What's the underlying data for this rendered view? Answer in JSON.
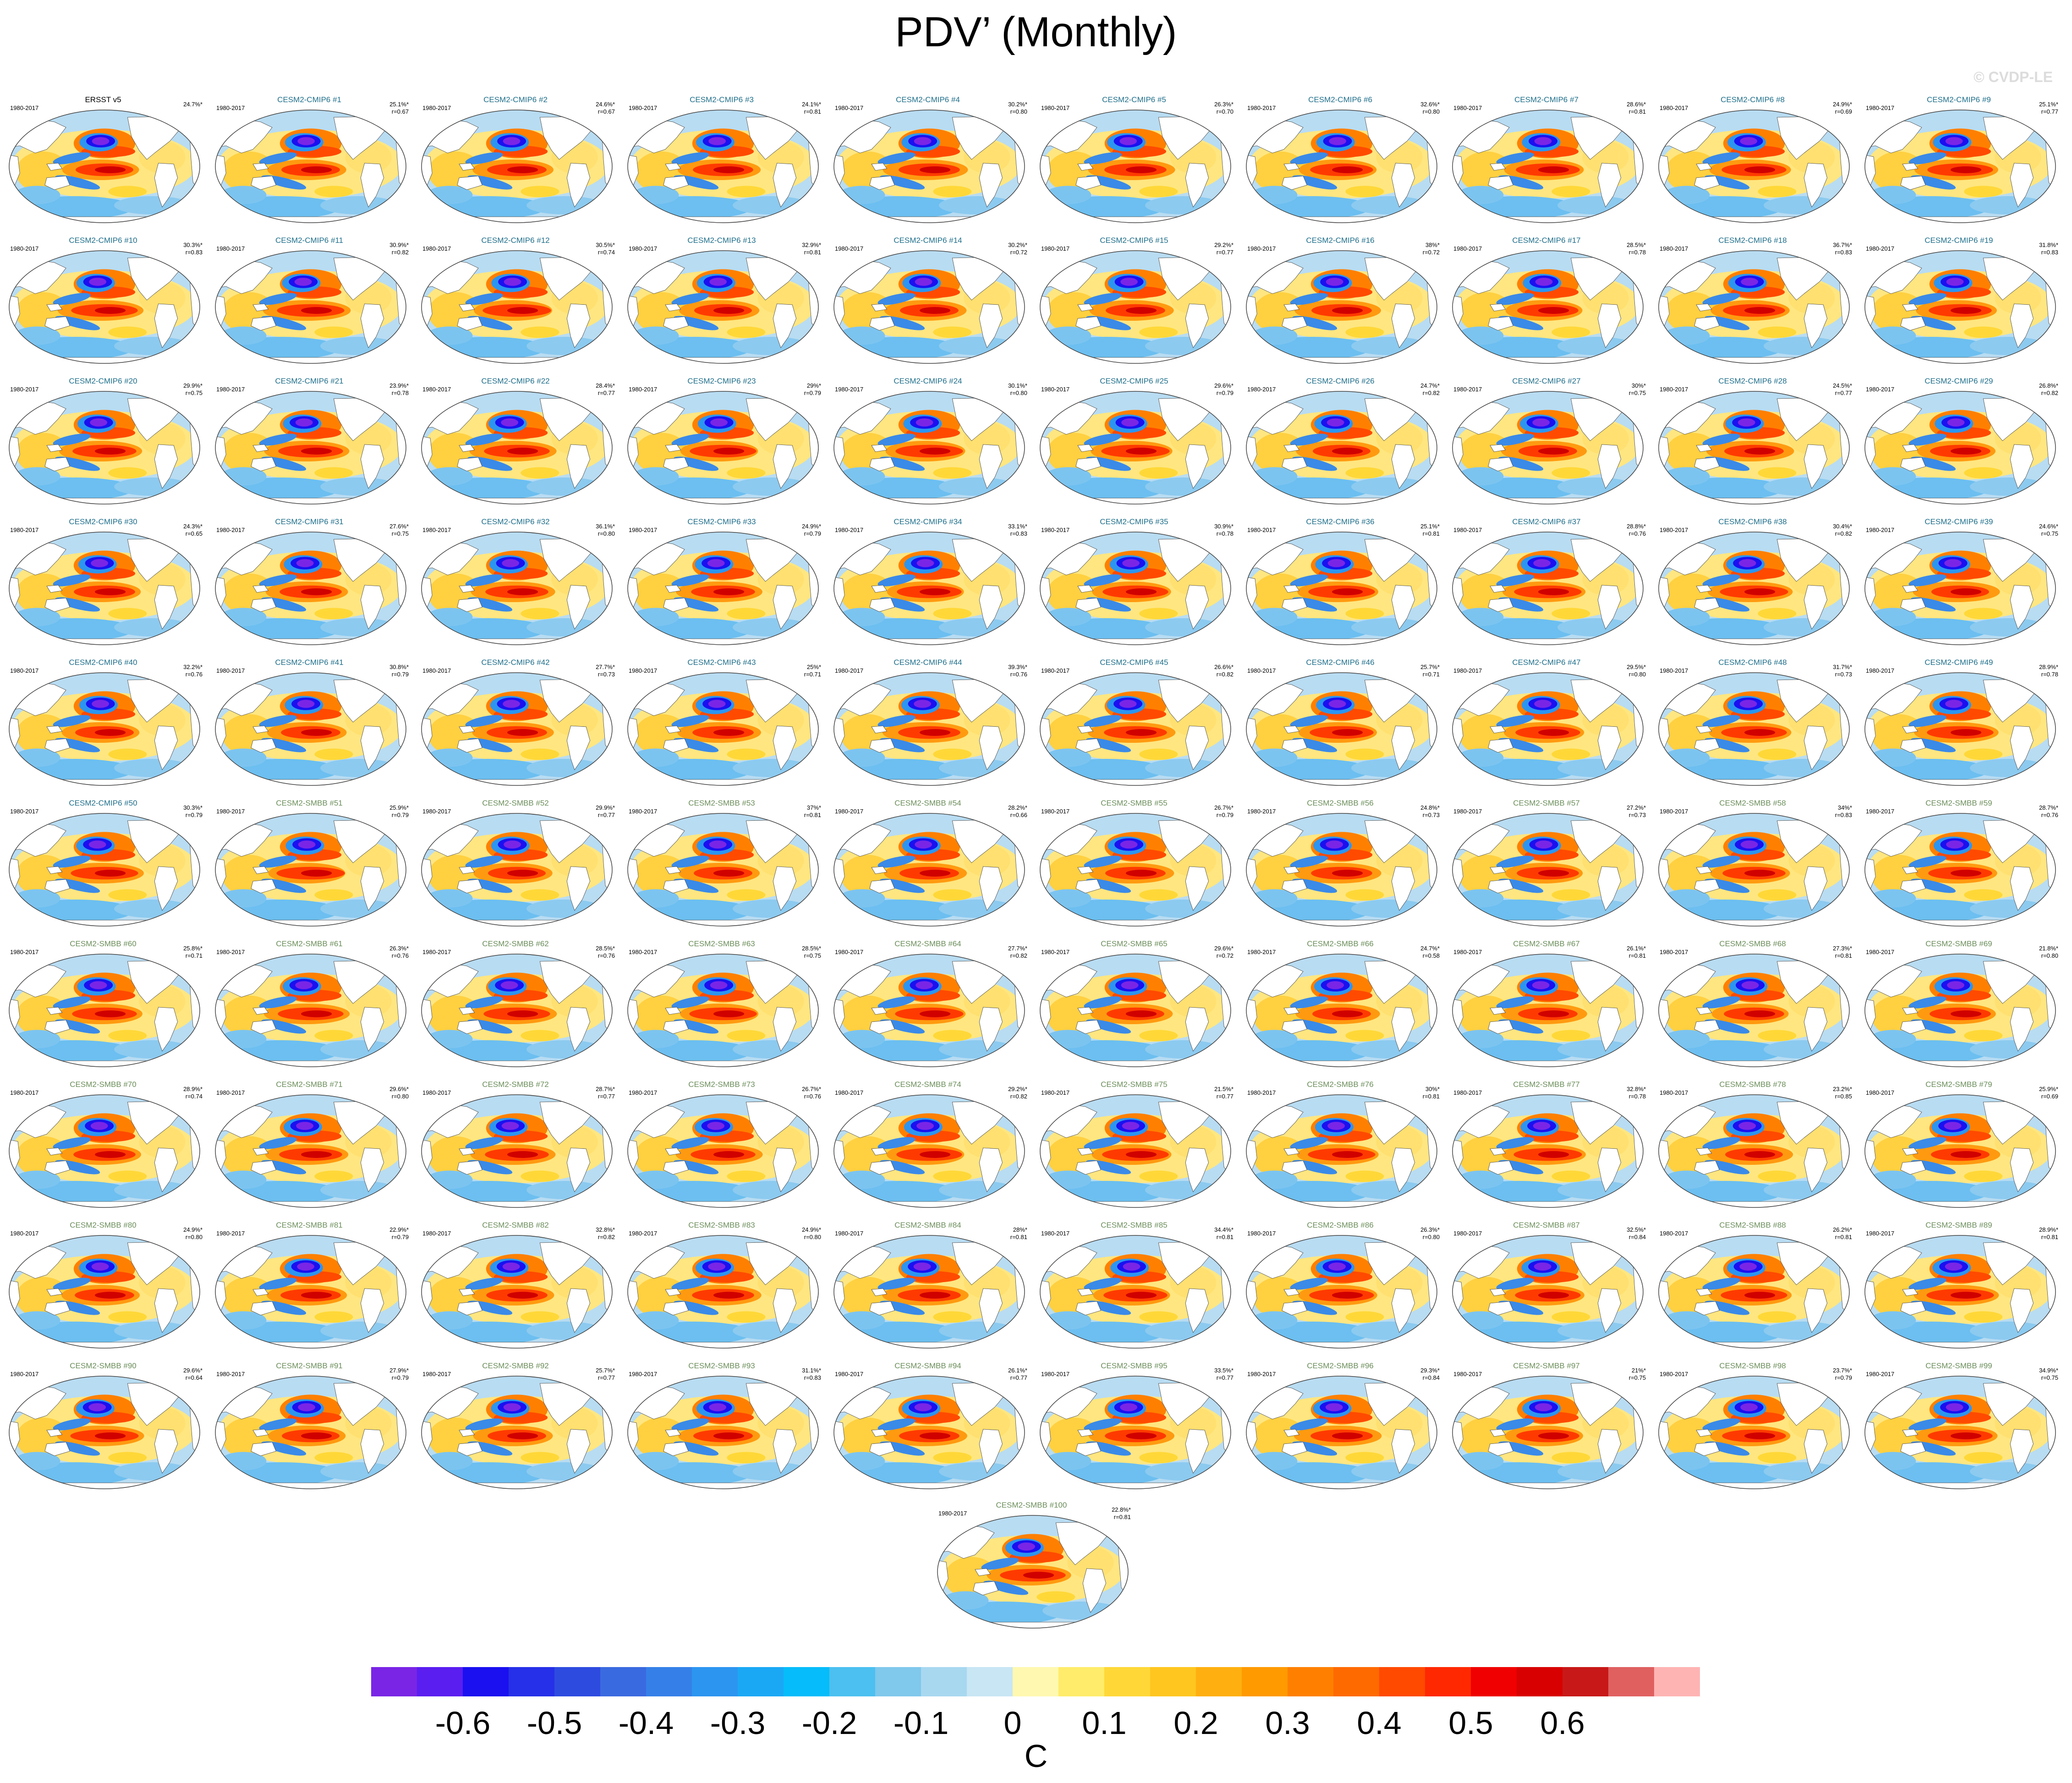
{
  "title": "PDV’ (Monthly)",
  "watermark": "© CVDP-LE",
  "period": "1980-2017",
  "panels": [
    {
      "name": "ERSST v5",
      "group": "obs",
      "pct": "24.7%*",
      "r": ""
    },
    {
      "name": "CESM2-CMIP6 #1",
      "group": "cmip",
      "pct": "25.1%*",
      "r": "r=0.67"
    },
    {
      "name": "CESM2-CMIP6 #2",
      "group": "cmip",
      "pct": "24.6%*",
      "r": "r=0.67"
    },
    {
      "name": "CESM2-CMIP6 #3",
      "group": "cmip",
      "pct": "24.1%*",
      "r": "r=0.81"
    },
    {
      "name": "CESM2-CMIP6 #4",
      "group": "cmip",
      "pct": "30.2%*",
      "r": "r=0.80"
    },
    {
      "name": "CESM2-CMIP6 #5",
      "group": "cmip",
      "pct": "26.3%*",
      "r": "r=0.70"
    },
    {
      "name": "CESM2-CMIP6 #6",
      "group": "cmip",
      "pct": "32.6%*",
      "r": "r=0.80"
    },
    {
      "name": "CESM2-CMIP6 #7",
      "group": "cmip",
      "pct": "28.6%*",
      "r": "r=0.81"
    },
    {
      "name": "CESM2-CMIP6 #8",
      "group": "cmip",
      "pct": "24.9%*",
      "r": "r=0.69"
    },
    {
      "name": "CESM2-CMIP6 #9",
      "group": "cmip",
      "pct": "25.1%*",
      "r": "r=0.77"
    },
    {
      "name": "CESM2-CMIP6 #10",
      "group": "cmip",
      "pct": "30.3%*",
      "r": "r=0.83"
    },
    {
      "name": "CESM2-CMIP6 #11",
      "group": "cmip",
      "pct": "30.9%*",
      "r": "r=0.82"
    },
    {
      "name": "CESM2-CMIP6 #12",
      "group": "cmip",
      "pct": "30.5%*",
      "r": "r=0.74"
    },
    {
      "name": "CESM2-CMIP6 #13",
      "group": "cmip",
      "pct": "32.9%*",
      "r": "r=0.81"
    },
    {
      "name": "CESM2-CMIP6 #14",
      "group": "cmip",
      "pct": "30.2%*",
      "r": "r=0.72"
    },
    {
      "name": "CESM2-CMIP6 #15",
      "group": "cmip",
      "pct": "29.2%*",
      "r": "r=0.77"
    },
    {
      "name": "CESM2-CMIP6 #16",
      "group": "cmip",
      "pct": "38%*",
      "r": "r=0.72"
    },
    {
      "name": "CESM2-CMIP6 #17",
      "group": "cmip",
      "pct": "28.5%*",
      "r": "r=0.78"
    },
    {
      "name": "CESM2-CMIP6 #18",
      "group": "cmip",
      "pct": "36.7%*",
      "r": "r=0.83"
    },
    {
      "name": "CESM2-CMIP6 #19",
      "group": "cmip",
      "pct": "31.8%*",
      "r": "r=0.83"
    },
    {
      "name": "CESM2-CMIP6 #20",
      "group": "cmip",
      "pct": "29.9%*",
      "r": "r=0.75"
    },
    {
      "name": "CESM2-CMIP6 #21",
      "group": "cmip",
      "pct": "23.9%*",
      "r": "r=0.78"
    },
    {
      "name": "CESM2-CMIP6 #22",
      "group": "cmip",
      "pct": "28.4%*",
      "r": "r=0.77"
    },
    {
      "name": "CESM2-CMIP6 #23",
      "group": "cmip",
      "pct": "29%*",
      "r": "r=0.79"
    },
    {
      "name": "CESM2-CMIP6 #24",
      "group": "cmip",
      "pct": "30.1%*",
      "r": "r=0.80"
    },
    {
      "name": "CESM2-CMIP6 #25",
      "group": "cmip",
      "pct": "29.6%*",
      "r": "r=0.79"
    },
    {
      "name": "CESM2-CMIP6 #26",
      "group": "cmip",
      "pct": "24.7%*",
      "r": "r=0.82"
    },
    {
      "name": "CESM2-CMIP6 #27",
      "group": "cmip",
      "pct": "30%*",
      "r": "r=0.75"
    },
    {
      "name": "CESM2-CMIP6 #28",
      "group": "cmip",
      "pct": "24.5%*",
      "r": "r=0.77"
    },
    {
      "name": "CESM2-CMIP6 #29",
      "group": "cmip",
      "pct": "26.8%*",
      "r": "r=0.82"
    },
    {
      "name": "CESM2-CMIP6 #30",
      "group": "cmip",
      "pct": "24.3%*",
      "r": "r=0.65"
    },
    {
      "name": "CESM2-CMIP6 #31",
      "group": "cmip",
      "pct": "27.6%*",
      "r": "r=0.75"
    },
    {
      "name": "CESM2-CMIP6 #32",
      "group": "cmip",
      "pct": "36.1%*",
      "r": "r=0.80"
    },
    {
      "name": "CESM2-CMIP6 #33",
      "group": "cmip",
      "pct": "24.9%*",
      "r": "r=0.79"
    },
    {
      "name": "CESM2-CMIP6 #34",
      "group": "cmip",
      "pct": "33.1%*",
      "r": "r=0.83"
    },
    {
      "name": "CESM2-CMIP6 #35",
      "group": "cmip",
      "pct": "30.9%*",
      "r": "r=0.78"
    },
    {
      "name": "CESM2-CMIP6 #36",
      "group": "cmip",
      "pct": "25.1%*",
      "r": "r=0.81"
    },
    {
      "name": "CESM2-CMIP6 #37",
      "group": "cmip",
      "pct": "28.8%*",
      "r": "r=0.76"
    },
    {
      "name": "CESM2-CMIP6 #38",
      "group": "cmip",
      "pct": "30.4%*",
      "r": "r=0.82"
    },
    {
      "name": "CESM2-CMIP6 #39",
      "group": "cmip",
      "pct": "24.6%*",
      "r": "r=0.75"
    },
    {
      "name": "CESM2-CMIP6 #40",
      "group": "cmip",
      "pct": "32.2%*",
      "r": "r=0.76"
    },
    {
      "name": "CESM2-CMIP6 #41",
      "group": "cmip",
      "pct": "30.8%*",
      "r": "r=0.79"
    },
    {
      "name": "CESM2-CMIP6 #42",
      "group": "cmip",
      "pct": "27.7%*",
      "r": "r=0.73"
    },
    {
      "name": "CESM2-CMIP6 #43",
      "group": "cmip",
      "pct": "25%*",
      "r": "r=0.71"
    },
    {
      "name": "CESM2-CMIP6 #44",
      "group": "cmip",
      "pct": "39.3%*",
      "r": "r=0.76"
    },
    {
      "name": "CESM2-CMIP6 #45",
      "group": "cmip",
      "pct": "26.6%*",
      "r": "r=0.82"
    },
    {
      "name": "CESM2-CMIP6 #46",
      "group": "cmip",
      "pct": "25.7%*",
      "r": "r=0.71"
    },
    {
      "name": "CESM2-CMIP6 #47",
      "group": "cmip",
      "pct": "29.5%*",
      "r": "r=0.80"
    },
    {
      "name": "CESM2-CMIP6 #48",
      "group": "cmip",
      "pct": "31.7%*",
      "r": "r=0.73"
    },
    {
      "name": "CESM2-CMIP6 #49",
      "group": "cmip",
      "pct": "28.9%*",
      "r": "r=0.78"
    },
    {
      "name": "CESM2-CMIP6 #50",
      "group": "cmip",
      "pct": "30.3%*",
      "r": "r=0.79"
    },
    {
      "name": "CESM2-SMBB #51",
      "group": "smbb",
      "pct": "25.9%*",
      "r": "r=0.79"
    },
    {
      "name": "CESM2-SMBB #52",
      "group": "smbb",
      "pct": "29.9%*",
      "r": "r=0.77"
    },
    {
      "name": "CESM2-SMBB #53",
      "group": "smbb",
      "pct": "37%*",
      "r": "r=0.81"
    },
    {
      "name": "CESM2-SMBB #54",
      "group": "smbb",
      "pct": "28.2%*",
      "r": "r=0.66"
    },
    {
      "name": "CESM2-SMBB #55",
      "group": "smbb",
      "pct": "26.7%*",
      "r": "r=0.79"
    },
    {
      "name": "CESM2-SMBB #56",
      "group": "smbb",
      "pct": "24.8%*",
      "r": "r=0.73"
    },
    {
      "name": "CESM2-SMBB #57",
      "group": "smbb",
      "pct": "27.2%*",
      "r": "r=0.73"
    },
    {
      "name": "CESM2-SMBB #58",
      "group": "smbb",
      "pct": "34%*",
      "r": "r=0.83"
    },
    {
      "name": "CESM2-SMBB #59",
      "group": "smbb",
      "pct": "28.7%*",
      "r": "r=0.76"
    },
    {
      "name": "CESM2-SMBB #60",
      "group": "smbb",
      "pct": "25.8%*",
      "r": "r=0.71"
    },
    {
      "name": "CESM2-SMBB #61",
      "group": "smbb",
      "pct": "26.3%*",
      "r": "r=0.76"
    },
    {
      "name": "CESM2-SMBB #62",
      "group": "smbb",
      "pct": "28.5%*",
      "r": "r=0.76"
    },
    {
      "name": "CESM2-SMBB #63",
      "group": "smbb",
      "pct": "28.5%*",
      "r": "r=0.75"
    },
    {
      "name": "CESM2-SMBB #64",
      "group": "smbb",
      "pct": "27.7%*",
      "r": "r=0.82"
    },
    {
      "name": "CESM2-SMBB #65",
      "group": "smbb",
      "pct": "29.6%*",
      "r": "r=0.72"
    },
    {
      "name": "CESM2-SMBB #66",
      "group": "smbb",
      "pct": "24.7%*",
      "r": "r=0.58"
    },
    {
      "name": "CESM2-SMBB #67",
      "group": "smbb",
      "pct": "26.1%*",
      "r": "r=0.81"
    },
    {
      "name": "CESM2-SMBB #68",
      "group": "smbb",
      "pct": "27.3%*",
      "r": "r=0.81"
    },
    {
      "name": "CESM2-SMBB #69",
      "group": "smbb",
      "pct": "21.8%*",
      "r": "r=0.80"
    },
    {
      "name": "CESM2-SMBB #70",
      "group": "smbb",
      "pct": "28.9%*",
      "r": "r=0.74"
    },
    {
      "name": "CESM2-SMBB #71",
      "group": "smbb",
      "pct": "29.6%*",
      "r": "r=0.80"
    },
    {
      "name": "CESM2-SMBB #72",
      "group": "smbb",
      "pct": "28.7%*",
      "r": "r=0.77"
    },
    {
      "name": "CESM2-SMBB #73",
      "group": "smbb",
      "pct": "26.7%*",
      "r": "r=0.76"
    },
    {
      "name": "CESM2-SMBB #74",
      "group": "smbb",
      "pct": "29.2%*",
      "r": "r=0.82"
    },
    {
      "name": "CESM2-SMBB #75",
      "group": "smbb",
      "pct": "21.5%*",
      "r": "r=0.77"
    },
    {
      "name": "CESM2-SMBB #76",
      "group": "smbb",
      "pct": "30%*",
      "r": "r=0.81"
    },
    {
      "name": "CESM2-SMBB #77",
      "group": "smbb",
      "pct": "32.8%*",
      "r": "r=0.78"
    },
    {
      "name": "CESM2-SMBB #78",
      "group": "smbb",
      "pct": "23.2%*",
      "r": "r=0.85"
    },
    {
      "name": "CESM2-SMBB #79",
      "group": "smbb",
      "pct": "25.9%*",
      "r": "r=0.69"
    },
    {
      "name": "CESM2-SMBB #80",
      "group": "smbb",
      "pct": "24.9%*",
      "r": "r=0.80"
    },
    {
      "name": "CESM2-SMBB #81",
      "group": "smbb",
      "pct": "22.9%*",
      "r": "r=0.79"
    },
    {
      "name": "CESM2-SMBB #82",
      "group": "smbb",
      "pct": "32.8%*",
      "r": "r=0.82"
    },
    {
      "name": "CESM2-SMBB #83",
      "group": "smbb",
      "pct": "24.9%*",
      "r": "r=0.80"
    },
    {
      "name": "CESM2-SMBB #84",
      "group": "smbb",
      "pct": "28%*",
      "r": "r=0.81"
    },
    {
      "name": "CESM2-SMBB #85",
      "group": "smbb",
      "pct": "34.4%*",
      "r": "r=0.81"
    },
    {
      "name": "CESM2-SMBB #86",
      "group": "smbb",
      "pct": "26.3%*",
      "r": "r=0.80"
    },
    {
      "name": "CESM2-SMBB #87",
      "group": "smbb",
      "pct": "32.5%*",
      "r": "r=0.84"
    },
    {
      "name": "CESM2-SMBB #88",
      "group": "smbb",
      "pct": "26.2%*",
      "r": "r=0.81"
    },
    {
      "name": "CESM2-SMBB #89",
      "group": "smbb",
      "pct": "28.9%*",
      "r": "r=0.81"
    },
    {
      "name": "CESM2-SMBB #90",
      "group": "smbb",
      "pct": "29.6%*",
      "r": "r=0.64"
    },
    {
      "name": "CESM2-SMBB #91",
      "group": "smbb",
      "pct": "27.9%*",
      "r": "r=0.79"
    },
    {
      "name": "CESM2-SMBB #92",
      "group": "smbb",
      "pct": "25.7%*",
      "r": "r=0.77"
    },
    {
      "name": "CESM2-SMBB #93",
      "group": "smbb",
      "pct": "31.1%*",
      "r": "r=0.83"
    },
    {
      "name": "CESM2-SMBB #94",
      "group": "smbb",
      "pct": "26.1%*",
      "r": "r=0.77"
    },
    {
      "name": "CESM2-SMBB #95",
      "group": "smbb",
      "pct": "33.5%*",
      "r": "r=0.77"
    },
    {
      "name": "CESM2-SMBB #96",
      "group": "smbb",
      "pct": "29.3%*",
      "r": "r=0.84"
    },
    {
      "name": "CESM2-SMBB #97",
      "group": "smbb",
      "pct": "21%*",
      "r": "r=0.75"
    },
    {
      "name": "CESM2-SMBB #98",
      "group": "smbb",
      "pct": "23.7%*",
      "r": "r=0.79"
    },
    {
      "name": "CESM2-SMBB #99",
      "group": "smbb",
      "pct": "34.9%*",
      "r": "r=0.75"
    },
    {
      "name": "CESM2-SMBB #100",
      "group": "smbb",
      "pct": "22.8%*",
      "r": "r=0.81"
    }
  ],
  "colorbar": {
    "colors": [
      "#7a25e6",
      "#5a1ef0",
      "#1a10f0",
      "#2630e8",
      "#2e4be0",
      "#3a6ae0",
      "#3580e8",
      "#2c95f0",
      "#1aa8f5",
      "#06bcfa",
      "#4cc0f0",
      "#80c8ec",
      "#a8d8f0",
      "#c8e6f4",
      "#fff8b0",
      "#ffec6a",
      "#ffd838",
      "#ffc620",
      "#ffb010",
      "#ff9a00",
      "#ff8000",
      "#ff6a00",
      "#ff4a00",
      "#ff2800",
      "#f00000",
      "#d80000",
      "#c81818",
      "#e06060",
      "#ffb4b4"
    ],
    "labels": [
      "-0.6",
      "-0.5",
      "-0.4",
      "-0.3",
      "-0.2",
      "-0.1",
      "0",
      "0.1",
      "0.2",
      "0.3",
      "0.4",
      "0.5",
      "0.6"
    ],
    "units": "C"
  },
  "colors": {
    "cmip_title": "#1f6f8b",
    "smbb_title": "#6b8e5a",
    "land": "#ffffff",
    "map_outline": "#444444"
  }
}
